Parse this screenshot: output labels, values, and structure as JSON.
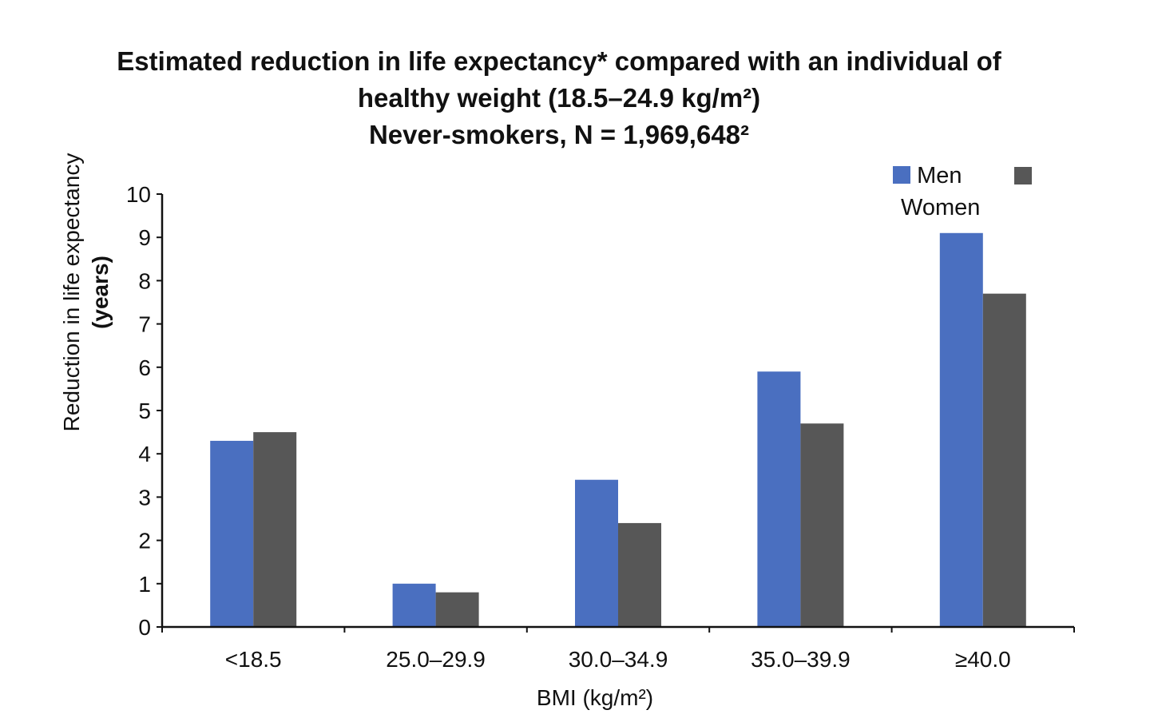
{
  "chart_data": {
    "type": "bar",
    "title_lines": [
      "Estimated reduction in life expectancy* compared with an individual of",
      "healthy weight (18.5–24.9 kg/m²)",
      "Never-smokers, N = 1,969,648²"
    ],
    "ylabel_lines": [
      "Reduction in life expectancy",
      "(years)"
    ],
    "xlabel": "BMI (kg/m²)",
    "categories": [
      "<18.5",
      "25.0–29.9",
      "30.0–34.9",
      "35.0–39.9",
      "≥40.0"
    ],
    "series": [
      {
        "name": "Men",
        "color": "#4a6fc0",
        "values": [
          4.3,
          1.0,
          3.4,
          5.9,
          9.1
        ]
      },
      {
        "name": "Women",
        "color": "#575757",
        "values": [
          4.5,
          0.8,
          2.4,
          4.7,
          7.7
        ]
      }
    ],
    "ylim": [
      0,
      10
    ],
    "yticks": [
      0,
      1,
      2,
      3,
      4,
      5,
      6,
      7,
      8,
      9,
      10
    ],
    "grid": false,
    "legend_position": "top-right"
  }
}
